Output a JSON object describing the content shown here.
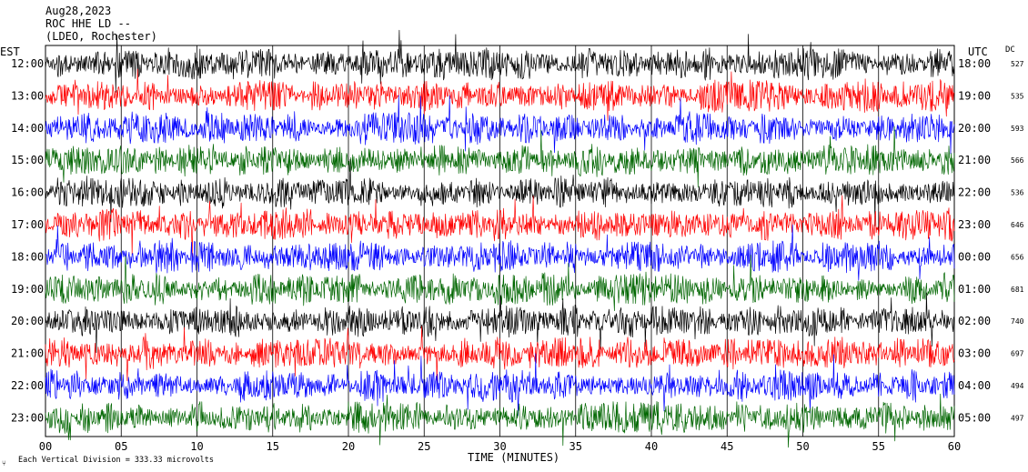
{
  "header": {
    "date": "Aug28,2023",
    "station": "ROC HHE LD --",
    "network": "(LDEO, Rochester)"
  },
  "axes": {
    "left_label": "EST",
    "right_label": "UTC",
    "dc_label": "DC",
    "xlabel": "TIME (MINUTES)",
    "scale_note": "Each Vertical Division = 333.33 microvolts",
    "corner_mark": "⑂"
  },
  "chart_data": {
    "type": "line",
    "title": "",
    "xlabel": "TIME (MINUTES)",
    "xlim": [
      0,
      60
    ],
    "x_ticks": [
      "00",
      "05",
      "10",
      "15",
      "20",
      "25",
      "30",
      "35",
      "40",
      "45",
      "50",
      "55",
      "60"
    ],
    "grid": "vertical lines every 5 minutes",
    "trace_colors": [
      "#000000",
      "#ff0000",
      "#0000ff",
      "#006600"
    ],
    "series": [
      {
        "est": "12:00",
        "utc": "18:00",
        "dc": "527",
        "color": "#000000"
      },
      {
        "est": "13:00",
        "utc": "19:00",
        "dc": "535",
        "color": "#ff0000"
      },
      {
        "est": "14:00",
        "utc": "20:00",
        "dc": "593",
        "color": "#0000ff"
      },
      {
        "est": "15:00",
        "utc": "21:00",
        "dc": "566",
        "color": "#006600"
      },
      {
        "est": "16:00",
        "utc": "22:00",
        "dc": "536",
        "color": "#000000"
      },
      {
        "est": "17:00",
        "utc": "23:00",
        "dc": "646",
        "color": "#ff0000"
      },
      {
        "est": "18:00",
        "utc": "00:00",
        "dc": "656",
        "color": "#0000ff"
      },
      {
        "est": "19:00",
        "utc": "01:00",
        "dc": "681",
        "color": "#006600"
      },
      {
        "est": "20:00",
        "utc": "02:00",
        "dc": "740",
        "color": "#000000"
      },
      {
        "est": "21:00",
        "utc": "03:00",
        "dc": "697",
        "color": "#ff0000"
      },
      {
        "est": "22:00",
        "utc": "04:00",
        "dc": "494",
        "color": "#0000ff"
      },
      {
        "est": "23:00",
        "utc": "05:00",
        "dc": "497",
        "color": "#006600"
      }
    ]
  }
}
